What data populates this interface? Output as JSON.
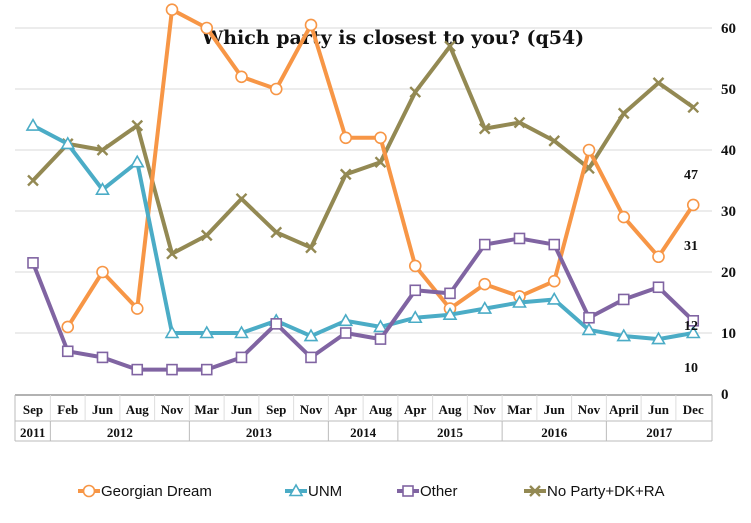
{
  "chart_data": {
    "type": "line",
    "title": "Which party is closest to you? (q54)",
    "ylim": [
      0,
      70
    ],
    "yticks": [
      0,
      10,
      20,
      30,
      40,
      50,
      60,
      70
    ],
    "grid": true,
    "legend_position": "bottom",
    "categories": [
      "Sep 2011",
      "Feb 2012",
      "Jun 2012",
      "Aug 2012",
      "Nov 2012",
      "Mar 2013",
      "Jun 2013",
      "Sep 2013",
      "Nov 2013",
      "Apr 2014",
      "Aug 2014",
      "Apr 2015",
      "Aug 2015",
      "Nov 2015",
      "Mar 2016",
      "Jun 2016",
      "Nov 2016",
      "April 2017",
      "Jun 2017",
      "Dec 2017"
    ],
    "month_labels": [
      "Sep",
      "Feb",
      "Jun",
      "Aug",
      "Nov",
      "Mar",
      "Jun",
      "Sep",
      "Nov",
      "Apr",
      "Aug",
      "Apr",
      "Aug",
      "Nov",
      "Mar",
      "Jun",
      "Nov",
      "April",
      "Jun",
      "Dec"
    ],
    "year_groups": [
      {
        "label": "2011",
        "start": 0,
        "end": 0
      },
      {
        "label": "2012",
        "start": 1,
        "end": 4
      },
      {
        "label": "2013",
        "start": 5,
        "end": 8
      },
      {
        "label": "2014",
        "start": 9,
        "end": 10
      },
      {
        "label": "2015",
        "start": 11,
        "end": 13
      },
      {
        "label": "2016",
        "start": 14,
        "end": 16
      },
      {
        "label": "2017",
        "start": 17,
        "end": 19
      }
    ],
    "series": [
      {
        "name": "Georgian Dream",
        "color": "#F79646",
        "marker": "circle",
        "values": [
          null,
          11,
          20,
          14,
          63,
          60,
          52,
          50,
          60.5,
          42,
          42,
          21,
          14,
          18,
          16,
          18.5,
          40,
          29,
          22.5,
          31
        ],
        "end_label": "31"
      },
      {
        "name": "UNM",
        "color": "#4BACC6",
        "marker": "triangle",
        "values": [
          44,
          41,
          33.5,
          38,
          10,
          10,
          10,
          12,
          9.5,
          12,
          11,
          12.5,
          13,
          14,
          15,
          15.5,
          10.5,
          9.5,
          9,
          10
        ],
        "end_label": "10"
      },
      {
        "name": "Other",
        "color": "#8064A2",
        "marker": "square",
        "values": [
          21.5,
          7,
          6,
          4,
          4,
          4,
          6,
          11.5,
          6,
          10,
          9,
          17,
          16.5,
          24.5,
          25.5,
          24.5,
          12.5,
          15.5,
          17.5,
          12
        ],
        "end_label": "12"
      },
      {
        "name": "No Party+DK+RA",
        "color": "#938953",
        "marker": "x",
        "values": [
          35,
          41,
          40,
          44,
          23,
          26,
          32,
          26.5,
          24,
          36,
          38,
          49.5,
          57,
          43.5,
          44.5,
          41.5,
          37,
          46,
          51,
          47
        ],
        "end_label": "47"
      }
    ]
  }
}
